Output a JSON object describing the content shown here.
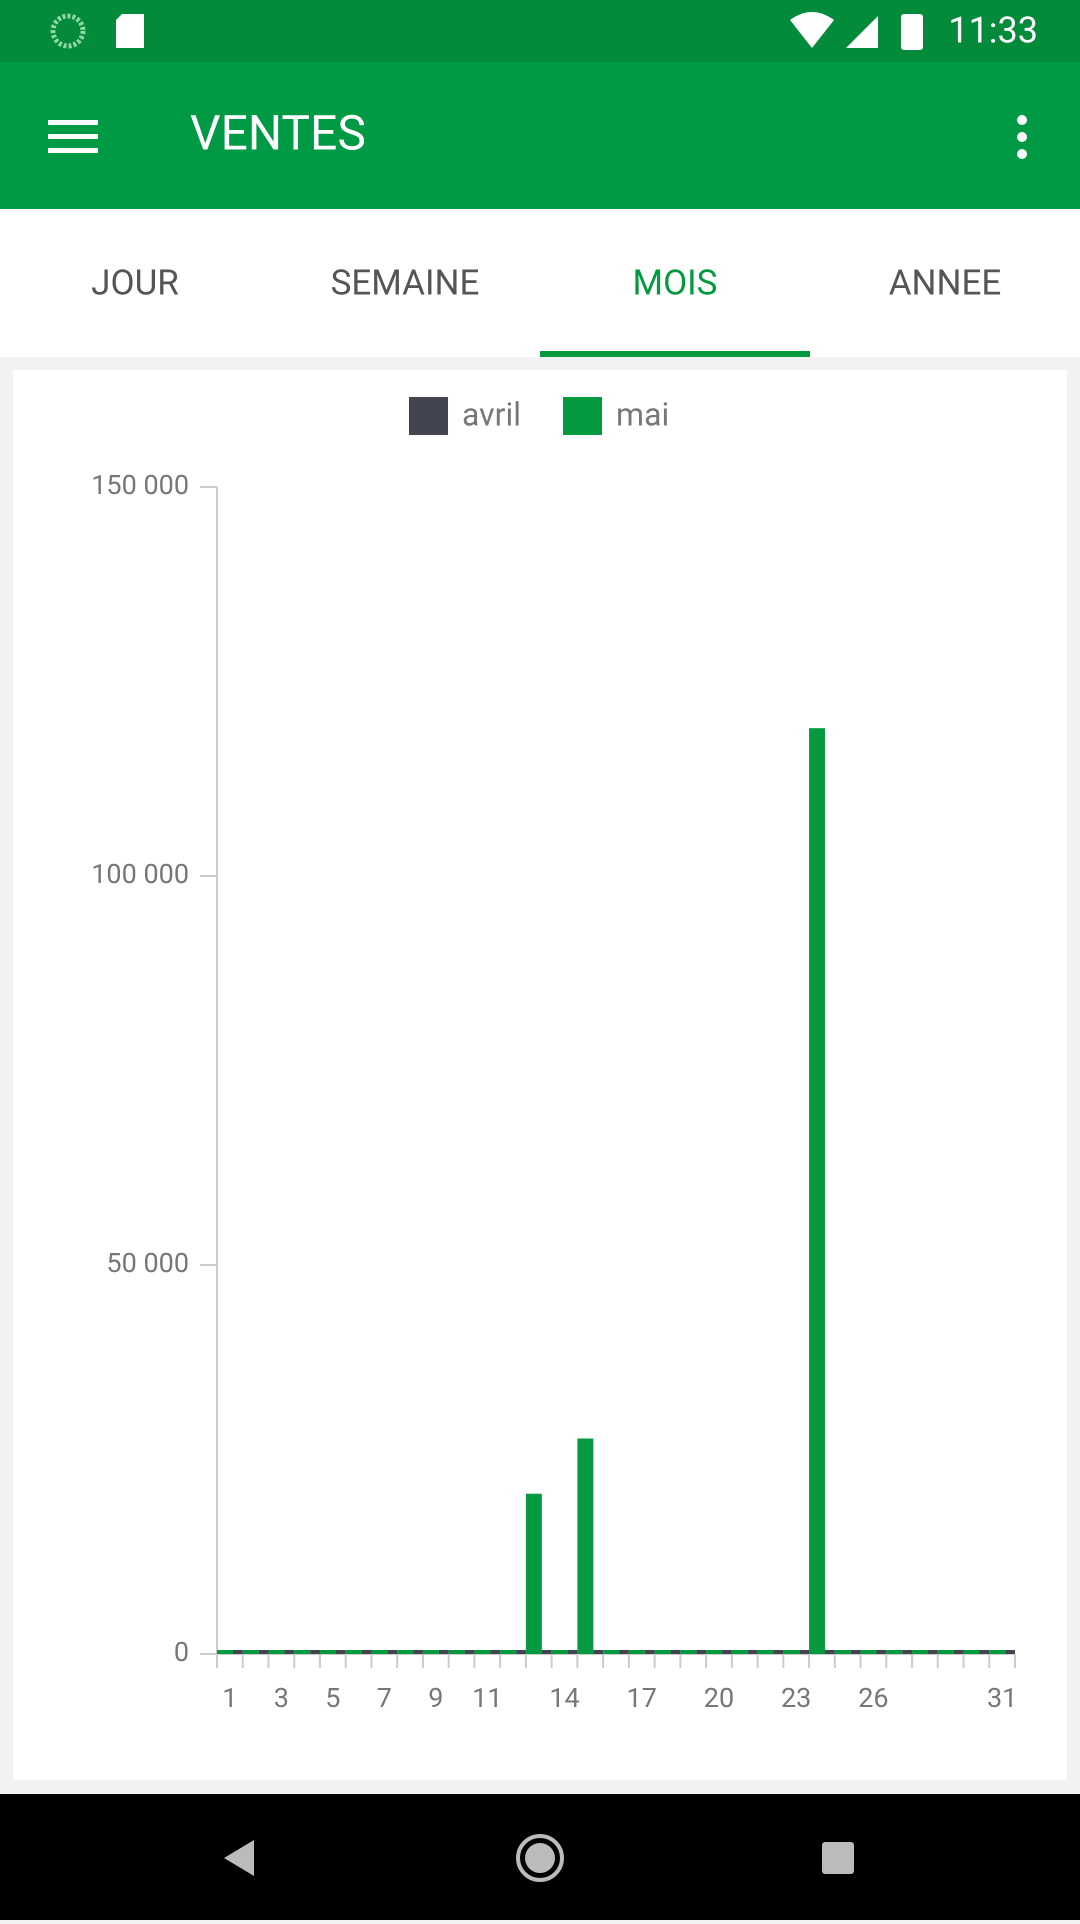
{
  "status_bar": {
    "time": "11:33"
  },
  "app_bar": {
    "title": "VENTES"
  },
  "tabs": {
    "items": [
      "JOUR",
      "SEMAINE",
      "MOIS",
      "ANNEE"
    ],
    "selected": 2
  },
  "chart_data": {
    "type": "bar",
    "categories": [
      1,
      null,
      3,
      null,
      5,
      null,
      7,
      null,
      9,
      null,
      11,
      null,
      null,
      14,
      null,
      null,
      17,
      null,
      null,
      20,
      null,
      null,
      23,
      null,
      null,
      26,
      null,
      null,
      null,
      null,
      31
    ],
    "series": [
      {
        "name": "avril",
        "color": "#424550",
        "values": [
          0,
          0,
          0,
          0,
          0,
          0,
          0,
          0,
          0,
          0,
          0,
          0,
          0,
          0,
          0,
          0,
          0,
          0,
          0,
          0,
          0,
          0,
          0,
          0,
          0,
          0,
          0,
          0,
          0,
          0,
          0
        ]
      },
      {
        "name": "mai",
        "color": "#069a40",
        "values": [
          0,
          0,
          0,
          0,
          0,
          0,
          0,
          0,
          0,
          0,
          0,
          0,
          20600,
          0,
          27700,
          0,
          0,
          0,
          0,
          0,
          0,
          0,
          0,
          119000,
          0,
          0,
          0,
          0,
          0,
          0,
          0
        ]
      }
    ],
    "ylim": [
      0,
      150000
    ],
    "yticks": [
      0,
      {
        "value": 50000,
        "label": "50 000"
      },
      {
        "value": 100000,
        "label": "100 000"
      },
      {
        "value": 150000,
        "label": "150 000"
      }
    ],
    "legend": "top"
  }
}
